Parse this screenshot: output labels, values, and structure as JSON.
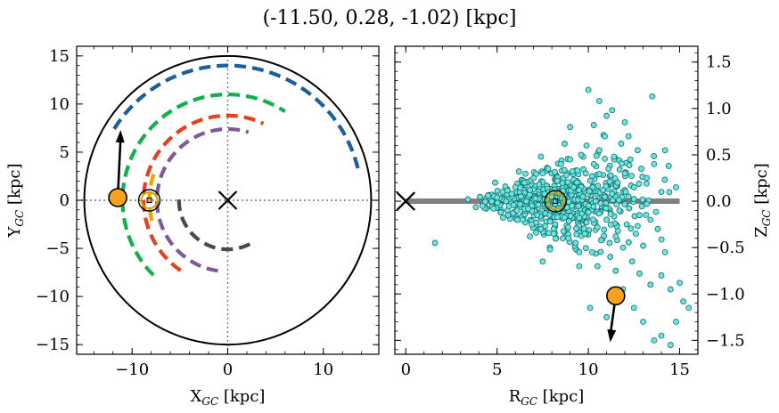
{
  "title": "(-11.50, 0.28, -1.02) [kpc]",
  "colors": {
    "frame": "#000000",
    "circle": "#000000",
    "arm_blue": "#1a5e9c",
    "arm_green": "#10b04a",
    "arm_red": "#e8401c",
    "arm_purple": "#7d5a9a",
    "arm_dark": "#4a4a4a",
    "arm_orange": "#f5a000",
    "star_fill": "#f8a21d",
    "scatter_fill": "#6fe3dd",
    "scatter_edge": "#0d6f6f",
    "disk_line": "#808080",
    "sun_ring": "#c8a400"
  },
  "chart_data": [
    {
      "type": "line",
      "panel": "left",
      "xlabel": "X",
      "xlabel_sub": "GC",
      "xlabel_unit": "[kpc]",
      "ylabel": "Y",
      "ylabel_sub": "GC",
      "ylabel_unit": "[kpc]",
      "xlim": [
        -15.8,
        15.8
      ],
      "ylim": [
        -16.0,
        16.0
      ],
      "xticks": [
        -10,
        0,
        10
      ],
      "xtick_labels": [
        "−10",
        "0",
        "10"
      ],
      "yticks": [
        -15,
        -10,
        -5,
        0,
        5,
        10,
        15
      ],
      "ytick_labels": [
        "−15",
        "−10",
        "−5",
        "0",
        "5",
        "10",
        "15"
      ],
      "boundary_circle_radius": 15,
      "galactic_center": [
        0,
        0
      ],
      "sun": [
        -8.2,
        0.0
      ],
      "object": [
        -11.5,
        0.28
      ],
      "object_arrow_to": [
        -11.2,
        7.3
      ],
      "arms": [
        {
          "color_key": "arm_blue",
          "radius": 14.0,
          "angle_start": 148,
          "angle_end": 11
        },
        {
          "color_key": "arm_green",
          "radius": 11.0,
          "angle_start": 225,
          "angle_end": 57
        },
        {
          "color_key": "arm_red",
          "radius": 8.8,
          "angle_start": 236,
          "angle_end": 65
        },
        {
          "color_key": "arm_purple",
          "radius": 7.4,
          "angle_start": 262,
          "angle_end": 73
        },
        {
          "color_key": "arm_dark",
          "radius": 5.1,
          "angle_start": 297,
          "angle_end": 175
        },
        {
          "color_key": "arm_orange",
          "radius": 8.2,
          "angle_start": 195,
          "angle_end": 158
        }
      ]
    },
    {
      "type": "scatter",
      "panel": "right",
      "xlabel": "R",
      "xlabel_sub": "GC",
      "xlabel_unit": "[kpc]",
      "ylabel": "Z",
      "ylabel_sub": "GC",
      "ylabel_unit": "[kpc]",
      "xlim": [
        -0.6,
        16.0
      ],
      "ylim": [
        -1.65,
        1.67
      ],
      "xticks": [
        0,
        5,
        10,
        15
      ],
      "xtick_labels": [
        "0",
        "5",
        "10",
        "15"
      ],
      "yticks": [
        -1.5,
        -1.0,
        -0.5,
        0.0,
        0.5,
        1.0,
        1.5
      ],
      "ytick_labels": [
        "−1.5",
        "−1.0",
        "−0.5",
        "0.0",
        "0.5",
        "1.0",
        "1.5"
      ],
      "disk_line": [
        [
          0,
          0
        ],
        [
          15,
          0
        ]
      ],
      "galactic_center": [
        0,
        0
      ],
      "sun": [
        8.2,
        0.0
      ],
      "object": [
        11.5,
        -1.02
      ],
      "object_arrow_to": [
        11.2,
        -1.52
      ],
      "points": [
        [
          1.6,
          -0.45
        ],
        [
          3.4,
          0.02
        ],
        [
          4.2,
          -0.05
        ],
        [
          4.5,
          0.06
        ],
        [
          4.8,
          -0.08
        ],
        [
          5.0,
          0.04
        ],
        [
          5.2,
          -0.12
        ],
        [
          5.3,
          0.1
        ],
        [
          5.5,
          0.0
        ],
        [
          5.6,
          -0.15
        ],
        [
          5.8,
          0.08
        ],
        [
          5.9,
          -0.04
        ],
        [
          6.0,
          0.15
        ],
        [
          6.1,
          -0.1
        ],
        [
          6.3,
          0.05
        ],
        [
          6.4,
          -0.2
        ],
        [
          6.5,
          0.2
        ],
        [
          6.6,
          0.0
        ],
        [
          6.7,
          -0.08
        ],
        [
          6.8,
          0.12
        ],
        [
          6.9,
          -0.25
        ],
        [
          7.0,
          0.25
        ],
        [
          7.1,
          0.03
        ],
        [
          7.2,
          -0.15
        ],
        [
          7.3,
          0.18
        ],
        [
          7.4,
          -0.3
        ],
        [
          7.5,
          0.3
        ],
        [
          7.6,
          0.08
        ],
        [
          7.7,
          -0.05
        ],
        [
          7.8,
          0.35
        ],
        [
          7.9,
          -0.22
        ],
        [
          8.0,
          0.1
        ],
        [
          8.1,
          -0.35
        ],
        [
          8.3,
          0.22
        ],
        [
          8.4,
          -0.1
        ],
        [
          8.5,
          0.4
        ],
        [
          8.6,
          -0.4
        ],
        [
          8.7,
          0.02
        ],
        [
          8.8,
          0.28
        ],
        [
          8.9,
          -0.28
        ],
        [
          9.0,
          0.45
        ],
        [
          9.1,
          -0.05
        ],
        [
          9.2,
          0.15
        ],
        [
          9.3,
          -0.45
        ],
        [
          9.4,
          0.33
        ],
        [
          9.5,
          -0.18
        ],
        [
          9.6,
          0.5
        ],
        [
          9.7,
          0.05
        ],
        [
          9.8,
          -0.35
        ],
        [
          9.9,
          0.6
        ],
        [
          10.0,
          -0.12
        ],
        [
          10.1,
          0.22
        ],
        [
          10.2,
          -0.55
        ],
        [
          10.3,
          0.4
        ],
        [
          10.4,
          0.0
        ],
        [
          10.5,
          -0.28
        ],
        [
          10.6,
          0.55
        ],
        [
          10.7,
          -0.42
        ],
        [
          10.8,
          0.12
        ],
        [
          10.9,
          0.7
        ],
        [
          11.0,
          -0.2
        ],
        [
          11.1,
          0.35
        ],
        [
          11.2,
          -0.6
        ],
        [
          11.3,
          0.08
        ],
        [
          11.4,
          0.48
        ],
        [
          11.5,
          -0.38
        ],
        [
          11.6,
          0.2
        ],
        [
          11.7,
          -0.1
        ],
        [
          11.8,
          0.62
        ],
        [
          11.9,
          -0.5
        ],
        [
          12.0,
          0.3
        ],
        [
          12.1,
          -0.25
        ],
        [
          12.2,
          0.05
        ],
        [
          12.3,
          0.45
        ],
        [
          12.4,
          -0.65
        ],
        [
          12.5,
          0.15
        ],
        [
          12.6,
          -0.35
        ],
        [
          12.7,
          0.55
        ],
        [
          12.8,
          -0.15
        ],
        [
          12.9,
          0.35
        ],
        [
          13.0,
          -0.48
        ],
        [
          13.2,
          0.25
        ],
        [
          13.4,
          -0.2
        ],
        [
          13.6,
          0.4
        ],
        [
          13.8,
          -0.3
        ],
        [
          14.0,
          0.1
        ],
        [
          14.2,
          -0.55
        ],
        [
          14.4,
          0.38
        ],
        [
          6.2,
          0.32
        ],
        [
          6.8,
          -0.38
        ],
        [
          7.4,
          0.48
        ],
        [
          7.9,
          -0.52
        ],
        [
          8.7,
          0.62
        ],
        [
          9.5,
          -0.7
        ],
        [
          10.3,
          0.82
        ],
        [
          10.6,
          1.08
        ],
        [
          10.0,
          1.2
        ],
        [
          11.0,
          0.92
        ],
        [
          12.0,
          0.85
        ],
        [
          13.5,
          1.13
        ],
        [
          11.5,
          -0.75
        ],
        [
          12.8,
          -0.78
        ],
        [
          10.5,
          -0.7
        ],
        [
          11.9,
          -0.95
        ],
        [
          13.4,
          -0.9
        ],
        [
          14.0,
          -0.8
        ],
        [
          14.5,
          -0.95
        ],
        [
          15.0,
          -0.88
        ],
        [
          15.2,
          -1.08
        ],
        [
          15.5,
          -1.15
        ],
        [
          14.8,
          -1.3
        ],
        [
          13.0,
          -1.3
        ],
        [
          12.5,
          -1.15
        ],
        [
          10.1,
          -1.15
        ],
        [
          14.0,
          -1.45
        ],
        [
          13.6,
          -1.5
        ],
        [
          14.5,
          -1.55
        ],
        [
          11.0,
          -1.25
        ],
        [
          9.5,
          -0.55
        ],
        [
          7.5,
          -0.65
        ],
        [
          8.9,
          -0.4
        ],
        [
          12.2,
          0.7
        ],
        [
          11.3,
          0.98
        ],
        [
          9.0,
          0.8
        ],
        [
          14.2,
          0.55
        ],
        [
          14.8,
          0.15
        ]
      ]
    }
  ]
}
